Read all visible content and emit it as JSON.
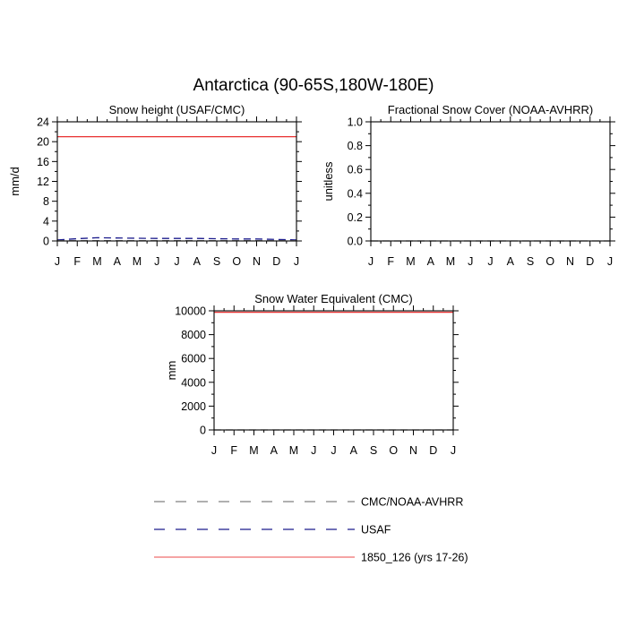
{
  "page_title": "Antarctica (90-65S,180W-180E)",
  "legend": {
    "entries": [
      {
        "label": "CMC/NOAA-AVHRR",
        "color": "#808080",
        "dash": "dashed"
      },
      {
        "label": "USAF",
        "color": "#1c1c8c",
        "dash": "dashed"
      },
      {
        "label": "1850_126 (yrs 17-26)",
        "color": "#e83030",
        "dash": "solid"
      }
    ]
  },
  "chart_data": [
    {
      "type": "line",
      "title": "Snow height (USAF/CMC)",
      "xlabel": "",
      "ylabel": "mm/d",
      "x_ticks": [
        "J",
        "F",
        "M",
        "A",
        "M",
        "J",
        "J",
        "A",
        "S",
        "O",
        "N",
        "D",
        "J"
      ],
      "ylim": [
        0,
        24
      ],
      "y_ticks": [
        0,
        4,
        8,
        12,
        16,
        20,
        24
      ],
      "y_tick_labels": [
        "0",
        "4",
        "8",
        "12",
        "16",
        "20",
        "24"
      ],
      "grid": false,
      "series": [
        {
          "name": "1850_126 (yrs 17-26)",
          "color": "#e83030",
          "dash": "solid",
          "values": [
            21.0,
            21.0,
            21.0,
            21.0,
            21.0,
            21.0,
            21.0,
            21.0,
            21.0,
            21.0,
            21.0,
            21.0,
            21.0
          ]
        },
        {
          "name": "USAF",
          "color": "#1c1c8c",
          "dash": "dashed",
          "values": [
            0.2,
            0.45,
            0.65,
            0.6,
            0.55,
            0.5,
            0.5,
            0.5,
            0.45,
            0.4,
            0.4,
            0.3,
            0.2
          ]
        },
        {
          "name": "CMC/NOAA-AVHRR",
          "color": "#808080",
          "dash": "dashed",
          "values": [
            0.05,
            0.05,
            0.05,
            0.05,
            0.05,
            0.05,
            0.05,
            0.05,
            0.05,
            0.05,
            0.05,
            0.05,
            0.05
          ]
        }
      ]
    },
    {
      "type": "line",
      "title": "Fractional Snow Cover (NOAA-AVHRR)",
      "xlabel": "",
      "ylabel": "unitless",
      "x_ticks": [
        "J",
        "F",
        "M",
        "A",
        "M",
        "J",
        "J",
        "A",
        "S",
        "O",
        "N",
        "D",
        "J"
      ],
      "ylim": [
        0,
        1
      ],
      "y_ticks": [
        0,
        0.2,
        0.4,
        0.6,
        0.8,
        1.0
      ],
      "y_tick_labels": [
        "0.0",
        "0.2",
        "0.4",
        "0.6",
        "0.8",
        "1.0"
      ],
      "grid": false,
      "series": [
        {
          "name": "CMC/NOAA-AVHRR",
          "color": "#808080",
          "dash": "dashed",
          "values": [
            0,
            0,
            0,
            0,
            0,
            0,
            0,
            0,
            0,
            0,
            0,
            0,
            0
          ]
        }
      ]
    },
    {
      "type": "line",
      "title": "Snow Water Equivalent (CMC)",
      "xlabel": "",
      "ylabel": "mm",
      "x_ticks": [
        "J",
        "F",
        "M",
        "A",
        "M",
        "J",
        "J",
        "A",
        "S",
        "O",
        "N",
        "D",
        "J"
      ],
      "ylim": [
        0,
        10000
      ],
      "y_ticks": [
        0,
        2000,
        4000,
        6000,
        8000,
        10000
      ],
      "y_tick_labels": [
        "0",
        "2000",
        "4000",
        "6000",
        "8000",
        "10000"
      ],
      "grid": false,
      "series": [
        {
          "name": "1850_126 (yrs 17-26)",
          "color": "#e83030",
          "dash": "solid",
          "values": [
            9880,
            9880,
            9880,
            9880,
            9880,
            9880,
            9880,
            9880,
            9880,
            9880,
            9880,
            9880,
            9880
          ]
        },
        {
          "name": "CMC/NOAA-AVHRR",
          "color": "#808080",
          "dash": "dashed",
          "values": [
            0,
            0,
            0,
            0,
            0,
            0,
            0,
            0,
            0,
            0,
            0,
            0,
            0
          ]
        }
      ]
    }
  ]
}
